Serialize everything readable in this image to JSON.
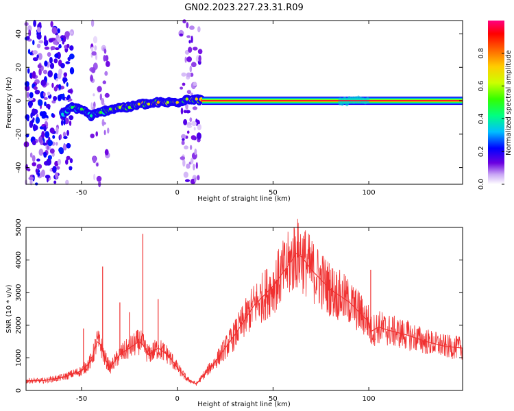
{
  "title": "GN02.2023.227.23.31.R09",
  "chart_data": [
    {
      "type": "heatmap",
      "xlabel": "Height of straight line (km)",
      "ylabel": "Frequency (Hz)",
      "xlim": [
        -79,
        149
      ],
      "ylim": [
        -50,
        48
      ],
      "x_ticks": [
        -50,
        0,
        50,
        100
      ],
      "y_ticks": [
        -40,
        -20,
        0,
        20,
        40
      ],
      "colorbar": {
        "label": "Normalized spectral amplitude",
        "range": [
          0,
          1
        ],
        "ticks": [
          0.0,
          0.2,
          0.4,
          0.6,
          0.8
        ],
        "tick_labels": [
          "0.0",
          "0.2",
          "0.4",
          "0.6",
          "0.8"
        ]
      },
      "tone_line": {
        "x_start": 13,
        "x_end": 149,
        "frequency": 0,
        "amplitude": 0.85
      },
      "tone_track": {
        "x": [
          -60,
          -55,
          -50,
          -45,
          -40,
          -35,
          -30,
          -25,
          -20,
          -15,
          -10,
          -5,
          0,
          5,
          10,
          13
        ],
        "frequency": [
          -8,
          -4,
          -5,
          -9,
          -7,
          -5,
          -4,
          -4,
          -2,
          -2,
          -1,
          -1,
          -1,
          1,
          1,
          0
        ],
        "amplitude": [
          0.35,
          0.45,
          0.5,
          0.4,
          0.5,
          0.55,
          0.6,
          0.55,
          0.7,
          0.65,
          0.75,
          0.6,
          0.7,
          0.6,
          0.7,
          0.85
        ]
      },
      "noise_regions": [
        {
          "x_min": -79,
          "x_max": -55,
          "amplitude": 0.15
        },
        {
          "x_min": -45,
          "x_max": -36,
          "amplitude": 0.08
        },
        {
          "x_min": 2,
          "x_max": 12,
          "amplitude": 0.1
        }
      ]
    },
    {
      "type": "line",
      "xlabel": "Height of straight line (km)",
      "ylabel": "SNR (10 * v/v)",
      "xlim": [
        -79,
        149
      ],
      "ylim": [
        0,
        5000
      ],
      "x_ticks": [
        -50,
        0,
        50,
        100
      ],
      "y_ticks": [
        0,
        1000,
        2000,
        3000,
        4000,
        5000
      ],
      "color": "#f03030",
      "series": [
        {
          "x": [
            -79,
            -70,
            -60,
            -50,
            -45,
            -42,
            -40,
            -38,
            -35,
            -30,
            -25,
            -20,
            -18,
            -15,
            -10,
            -5,
            0,
            5,
            10,
            20,
            30,
            40,
            50,
            55,
            60,
            62,
            65,
            70,
            80,
            90,
            95,
            100,
            101,
            105,
            110,
            120,
            130,
            140,
            149
          ],
          "values": [
            300,
            300,
            400,
            600,
            900,
            1500,
            1400,
            1000,
            700,
            1100,
            1300,
            1500,
            1400,
            1100,
            1300,
            1100,
            700,
            350,
            200,
            900,
            1700,
            2600,
            3200,
            3600,
            4000,
            4200,
            4100,
            3700,
            3100,
            2700,
            2400,
            2100,
            1800,
            1950,
            1850,
            1700,
            1500,
            1350,
            1300
          ]
        }
      ],
      "peaks": [
        {
          "x": -49,
          "value": 1900
        },
        {
          "x": -39,
          "value": 3800
        },
        {
          "x": -30,
          "value": 2700
        },
        {
          "x": -25,
          "value": 2400
        },
        {
          "x": -18,
          "value": 4800
        },
        {
          "x": -10,
          "value": 2800
        },
        {
          "x": 61,
          "value": 5000
        },
        {
          "x": 95,
          "value": 3000
        },
        {
          "x": 101,
          "value": 3700
        }
      ]
    }
  ]
}
